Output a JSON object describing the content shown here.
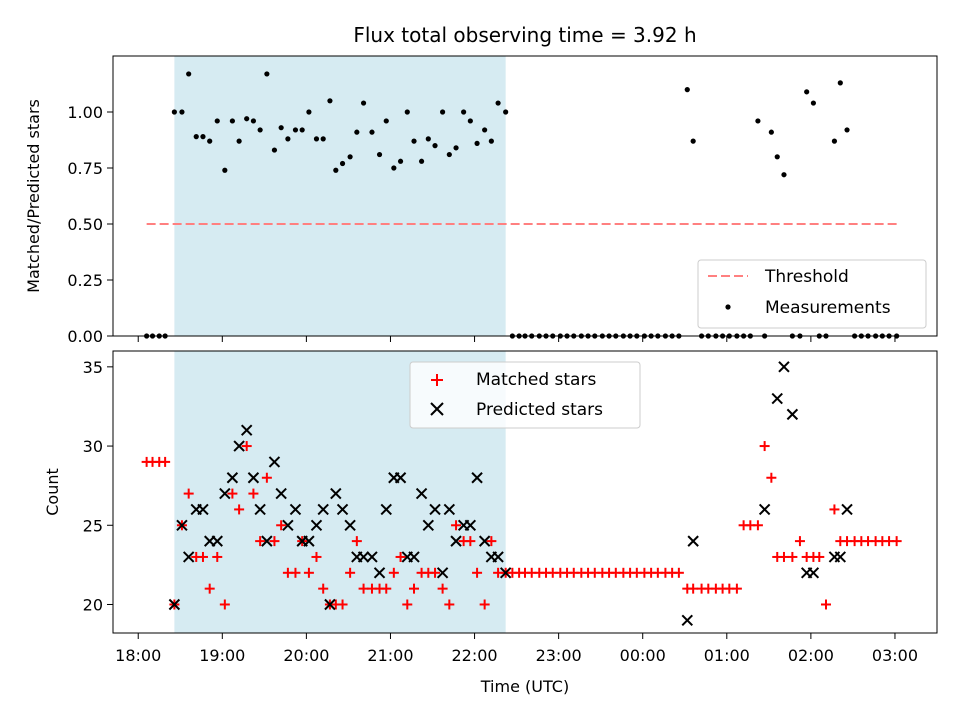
{
  "chart_data": [
    {
      "type": "scatter",
      "title": "Flux total observing time = 3.92 h",
      "ylabel": "Matched/Predicted stars",
      "xlabel": "",
      "x_range_hours": [
        17.7,
        27.5
      ],
      "ylim": [
        0,
        1.25
      ],
      "yticks": [
        0.0,
        0.25,
        0.5,
        0.75,
        1.0
      ],
      "ytick_labels": [
        "0.00",
        "0.25",
        "0.50",
        "0.75",
        "1.00"
      ],
      "shaded_span": [
        18.43,
        22.37
      ],
      "shade_color": "#add8e6",
      "legend_position": "lower right",
      "threshold": {
        "name": "Threshold",
        "value": 0.5,
        "x_start": 18.1,
        "x_end": 27.05,
        "color": "#ff8080",
        "style": "dashed"
      },
      "series": [
        {
          "name": "Measurements",
          "marker": "dot",
          "color": "#000000",
          "x": [
            18.1,
            18.17,
            18.25,
            18.32,
            18.43,
            18.52,
            18.6,
            18.69,
            18.77,
            18.85,
            18.94,
            19.03,
            19.12,
            19.2,
            19.29,
            19.37,
            19.45,
            19.53,
            19.62,
            19.7,
            19.78,
            19.87,
            19.95,
            20.03,
            20.12,
            20.2,
            20.28,
            20.35,
            20.43,
            20.52,
            20.6,
            20.68,
            20.78,
            20.87,
            20.95,
            21.04,
            21.12,
            21.2,
            21.28,
            21.37,
            21.45,
            21.53,
            21.62,
            21.7,
            21.78,
            21.87,
            21.95,
            22.03,
            22.12,
            22.2,
            22.28,
            22.37,
            22.45,
            22.53,
            22.6,
            22.68,
            22.77,
            22.85,
            22.93,
            23.02,
            23.1,
            23.18,
            23.27,
            23.35,
            23.43,
            23.52,
            23.6,
            23.68,
            23.77,
            23.85,
            23.93,
            24.02,
            24.1,
            24.18,
            24.27,
            24.35,
            24.43,
            24.53,
            24.6,
            24.7,
            24.78,
            24.87,
            24.95,
            25.03,
            25.12,
            25.2,
            25.28,
            25.37,
            25.45,
            25.53,
            25.6,
            25.68,
            25.78,
            25.87,
            25.95,
            26.03,
            26.1,
            26.18,
            26.28,
            26.35,
            26.43,
            26.52,
            26.6,
            26.68,
            26.77,
            26.85,
            26.93,
            27.02
          ],
          "y": [
            0,
            0,
            0,
            0,
            1.0,
            1.0,
            1.17,
            0.89,
            0.89,
            0.87,
            0.96,
            0.74,
            0.96,
            0.87,
            0.97,
            0.96,
            0.92,
            1.17,
            0.83,
            0.93,
            0.88,
            0.92,
            0.92,
            1.0,
            0.88,
            0.88,
            1.05,
            0.74,
            0.77,
            0.8,
            0.91,
            1.04,
            0.91,
            0.81,
            0.96,
            0.75,
            0.78,
            1.0,
            0.87,
            0.78,
            0.88,
            0.85,
            1.0,
            0.81,
            0.84,
            1.0,
            0.96,
            0.86,
            0.92,
            0.87,
            1.04,
            1.0,
            0,
            0,
            0,
            0,
            0,
            0,
            0,
            0,
            0,
            0,
            0,
            0,
            0,
            0,
            0,
            0,
            0,
            0,
            0,
            0,
            0,
            0,
            0,
            0,
            0,
            1.1,
            0.87,
            0,
            0,
            0,
            0,
            0,
            0,
            0,
            0,
            0.96,
            0,
            0.91,
            0.8,
            0.72,
            0,
            0,
            1.09,
            1.04,
            0,
            0,
            0.87,
            1.13,
            0.92,
            0,
            0,
            0,
            0,
            0,
            0,
            0
          ]
        }
      ]
    },
    {
      "type": "scatter",
      "title": "",
      "xlabel": "Time (UTC)",
      "ylabel": "Count",
      "x_range_hours": [
        17.7,
        27.5
      ],
      "ylim": [
        18.2,
        36.0
      ],
      "yticks": [
        20,
        25,
        30,
        35
      ],
      "ytick_labels": [
        "20",
        "25",
        "30",
        "35"
      ],
      "xticks_hours": [
        18,
        19,
        20,
        21,
        22,
        23,
        24,
        25,
        26,
        27
      ],
      "xtick_labels": [
        "18:00",
        "19:00",
        "20:00",
        "21:00",
        "22:00",
        "23:00",
        "00:00",
        "01:00",
        "02:00",
        "03:00"
      ],
      "shaded_span": [
        18.43,
        22.37
      ],
      "shade_color": "#add8e6",
      "legend_position": "upper center",
      "series": [
        {
          "name": "Matched stars",
          "marker": "plus",
          "color": "#ff0000",
          "x": [
            18.1,
            18.17,
            18.25,
            18.32,
            18.43,
            18.52,
            18.6,
            18.69,
            18.77,
            18.85,
            18.94,
            19.03,
            19.12,
            19.2,
            19.29,
            19.37,
            19.45,
            19.53,
            19.62,
            19.7,
            19.78,
            19.87,
            19.95,
            20.03,
            20.12,
            20.2,
            20.28,
            20.35,
            20.43,
            20.52,
            20.6,
            20.68,
            20.78,
            20.87,
            20.95,
            21.04,
            21.12,
            21.2,
            21.28,
            21.37,
            21.45,
            21.53,
            21.62,
            21.7,
            21.78,
            21.87,
            21.95,
            22.03,
            22.12,
            22.2,
            22.28,
            22.37,
            22.45,
            22.53,
            22.6,
            22.68,
            22.77,
            22.85,
            22.93,
            23.02,
            23.1,
            23.18,
            23.27,
            23.35,
            23.43,
            23.52,
            23.6,
            23.68,
            23.77,
            23.85,
            23.93,
            24.02,
            24.1,
            24.18,
            24.27,
            24.35,
            24.43,
            24.53,
            24.6,
            24.7,
            24.78,
            24.87,
            24.95,
            25.03,
            25.12,
            25.2,
            25.28,
            25.37,
            25.45,
            25.53,
            25.6,
            25.68,
            25.78,
            25.87,
            25.95,
            26.03,
            26.1,
            26.18,
            26.28,
            26.35,
            26.43,
            26.52,
            26.6,
            26.68,
            26.77,
            26.85,
            26.93,
            27.02
          ],
          "y": [
            29,
            29,
            29,
            29,
            20,
            25,
            27,
            23,
            23,
            21,
            23,
            20,
            27,
            26,
            30,
            27,
            24,
            28,
            24,
            25,
            22,
            22,
            24,
            22,
            23,
            21,
            20,
            20,
            20,
            22,
            24,
            21,
            21,
            21,
            21,
            22,
            23,
            20,
            21,
            22,
            22,
            22,
            21,
            20,
            25,
            24,
            24,
            22,
            20,
            24,
            22,
            22,
            22,
            22,
            22,
            22,
            22,
            22,
            22,
            22,
            22,
            22,
            22,
            22,
            22,
            22,
            22,
            22,
            22,
            22,
            22,
            22,
            22,
            22,
            22,
            22,
            22,
            21,
            21,
            21,
            21,
            21,
            21,
            21,
            21,
            25,
            25,
            25,
            30,
            28,
            23,
            23,
            23,
            24,
            23,
            23,
            23,
            20,
            26,
            24,
            24,
            24,
            24,
            24,
            24,
            24,
            24,
            24
          ]
        },
        {
          "name": "Predicted stars",
          "marker": "x",
          "color": "#000000",
          "x": [
            18.43,
            18.52,
            18.6,
            18.69,
            18.77,
            18.85,
            18.94,
            19.03,
            19.12,
            19.2,
            19.29,
            19.37,
            19.45,
            19.53,
            19.62,
            19.7,
            19.78,
            19.87,
            19.95,
            20.03,
            20.12,
            20.2,
            20.28,
            20.35,
            20.43,
            20.52,
            20.6,
            20.68,
            20.78,
            20.87,
            20.95,
            21.04,
            21.12,
            21.2,
            21.28,
            21.37,
            21.45,
            21.53,
            21.62,
            21.7,
            21.78,
            21.87,
            21.95,
            22.03,
            22.12,
            22.2,
            22.28,
            22.37,
            24.53,
            24.6,
            25.45,
            25.6,
            25.68,
            25.78,
            25.95,
            26.03,
            26.28,
            26.35,
            26.43
          ],
          "y": [
            20,
            25,
            23,
            26,
            26,
            24,
            24,
            27,
            28,
            30,
            31,
            28,
            26,
            24,
            29,
            27,
            25,
            26,
            24,
            24,
            25,
            26,
            20,
            27,
            26,
            25,
            23,
            23,
            23,
            22,
            26,
            28,
            28,
            23,
            23,
            27,
            25,
            26,
            22,
            26,
            24,
            25,
            25,
            28,
            24,
            23,
            23,
            22,
            19,
            24,
            26,
            33,
            35,
            32,
            22,
            22,
            23,
            23,
            26
          ]
        }
      ]
    }
  ]
}
